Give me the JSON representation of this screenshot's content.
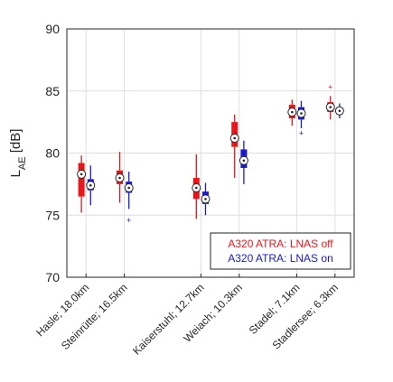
{
  "chart_data": {
    "type": "box",
    "ylabel_main": "L",
    "ylabel_sub": "AE",
    "ylabel_unit": " [dB]",
    "ylim": [
      70,
      90
    ],
    "yticks": [
      70,
      75,
      80,
      85,
      90
    ],
    "grid": true,
    "legend_placement": "bottom-right",
    "categories": [
      {
        "label": "Hasle; 18.0km",
        "x": 1
      },
      {
        "label": "Steinrütte; 16.5km",
        "x": 2
      },
      {
        "label": "Kaiserstuhl; 12.7km",
        "x": 4
      },
      {
        "label": "Weiach; 10.3km",
        "x": 5
      },
      {
        "label": "Stadel; 7.1km",
        "x": 6.5
      },
      {
        "label": "Stadlersee; 6.3km",
        "x": 7.5
      }
    ],
    "series": [
      {
        "name": "A320 ATRA: LNAS off",
        "color": "#e8161b",
        "offset": -0.12,
        "boxes": [
          {
            "whisker_low": 75.2,
            "q1": 76.5,
            "median": 78.3,
            "q3": 79.2,
            "whisker_high": 79.8
          },
          {
            "whisker_low": 76.0,
            "q1": 77.5,
            "median": 78.0,
            "q3": 78.6,
            "whisker_high": 80.1
          },
          {
            "whisker_low": 74.7,
            "q1": 76.3,
            "median": 77.2,
            "q3": 78.0,
            "whisker_high": 79.9
          },
          {
            "whisker_low": 78.0,
            "q1": 80.5,
            "median": 81.2,
            "q3": 82.5,
            "whisker_high": 83.1
          },
          {
            "whisker_low": 82.2,
            "q1": 82.8,
            "median": 83.3,
            "q3": 83.9,
            "whisker_high": 84.3
          },
          {
            "whisker_low": 82.7,
            "q1": 83.3,
            "median": 83.7,
            "q3": 84.1,
            "whisker_high": 84.6
          }
        ],
        "outliers": [
          [],
          [],
          [],
          [],
          [],
          [
            85.3
          ]
        ]
      },
      {
        "name": "A320 ATRA: LNAS on",
        "color": "#1a1ad6",
        "offset": 0.12,
        "boxes": [
          {
            "whisker_low": 75.8,
            "q1": 77.0,
            "median": 77.4,
            "q3": 77.9,
            "whisker_high": 79.0
          },
          {
            "whisker_low": 75.5,
            "q1": 76.8,
            "median": 77.2,
            "q3": 77.7,
            "whisker_high": 78.5
          },
          {
            "whisker_low": 75.0,
            "q1": 75.9,
            "median": 76.3,
            "q3": 76.9,
            "whisker_high": 77.6
          },
          {
            "whisker_low": 77.5,
            "q1": 78.8,
            "median": 79.4,
            "q3": 80.3,
            "whisker_high": 81.0
          },
          {
            "whisker_low": 82.0,
            "q1": 82.7,
            "median": 83.2,
            "q3": 83.7,
            "whisker_high": 84.2
          },
          {
            "whisker_low": 82.8,
            "q1": 83.1,
            "median": 83.4,
            "q3": 83.7,
            "whisker_high": 84.0
          }
        ],
        "outliers": [
          [],
          [
            74.6
          ],
          [],
          [],
          [
            81.6
          ],
          []
        ]
      }
    ]
  }
}
